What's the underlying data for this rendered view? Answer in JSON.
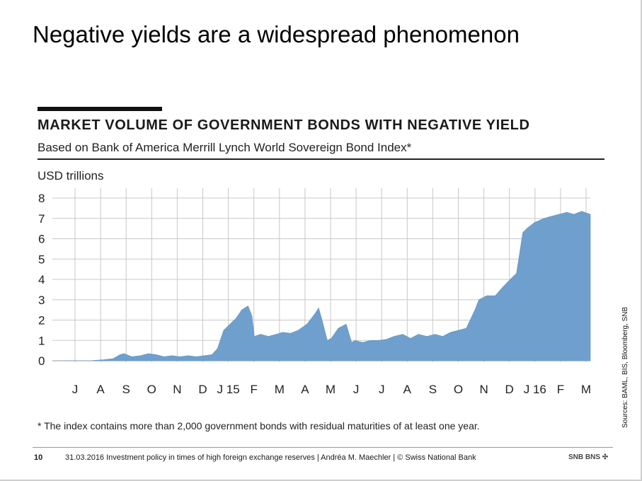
{
  "slide": {
    "title": "Negative yields are a widespread phenomenon",
    "footnote": "* The index contains more than 2,000 government bonds with residual maturities of at least one year.",
    "source": "Sources: BAML, BIS, Bloomberg, SNB"
  },
  "footer": {
    "page": "10",
    "text": "31.03.2016  Investment policy in times of high foreign exchange reserves  |  Andréa M. Maechler  |  © Swiss National Bank",
    "logo": "SNB BNS ✣"
  },
  "chart_data": {
    "type": "area",
    "title": "MARKET VOLUME OF GOVERNMENT BONDS WITH NEGATIVE YIELD",
    "subtitle": "Based on Bank of America Merrill Lynch World Sovereign Bond Index*",
    "ylabel": "USD trillions",
    "ylim": [
      0,
      8
    ],
    "yticks": [
      0,
      1,
      2,
      3,
      4,
      5,
      6,
      7,
      8
    ],
    "x_tick_labels": [
      "J",
      "A",
      "S",
      "O",
      "N",
      "D",
      "J 15",
      "F",
      "M",
      "A",
      "M",
      "J",
      "J",
      "A",
      "S",
      "O",
      "N",
      "D",
      "J 16",
      "F",
      "M"
    ],
    "x_range": [
      "2014-06-01",
      "2016-03-31"
    ],
    "grid": true,
    "color": "#6f9fcc",
    "series": [
      {
        "x": [
          "2014-06-01",
          "2014-07-01",
          "2014-07-20",
          "2014-08-01",
          "2014-08-10",
          "2014-08-15",
          "2014-08-25",
          "2014-09-05",
          "2014-09-15",
          "2014-09-25",
          "2014-10-05",
          "2014-10-15",
          "2014-10-25",
          "2014-11-05",
          "2014-11-15",
          "2014-11-25",
          "2014-12-05",
          "2014-12-12",
          "2014-12-20",
          "2014-12-28",
          "2015-01-05",
          "2015-01-12",
          "2015-01-20",
          "2015-01-25",
          "2015-01-28",
          "2015-02-05",
          "2015-02-15",
          "2015-02-25",
          "2015-03-05",
          "2015-03-15",
          "2015-03-25",
          "2015-04-05",
          "2015-04-15",
          "2015-04-20",
          "2015-04-25",
          "2015-05-01",
          "2015-05-06",
          "2015-05-15",
          "2015-05-25",
          "2015-06-01",
          "2015-06-05",
          "2015-06-15",
          "2015-06-25",
          "2015-07-05",
          "2015-07-15",
          "2015-07-25",
          "2015-08-05",
          "2015-08-15",
          "2015-08-25",
          "2015-09-05",
          "2015-09-15",
          "2015-09-25",
          "2015-10-05",
          "2015-10-15",
          "2015-10-25",
          "2015-11-05",
          "2015-11-10",
          "2015-11-20",
          "2015-12-01",
          "2015-12-10",
          "2015-12-20",
          "2015-12-28",
          "2016-01-05",
          "2016-01-10",
          "2016-01-20",
          "2016-02-01",
          "2016-02-10",
          "2016-02-20",
          "2016-03-01",
          "2016-03-10",
          "2016-03-20",
          "2016-03-31"
        ],
        "y": [
          0,
          0,
          0.05,
          0.1,
          0.3,
          0.35,
          0.2,
          0.25,
          0.35,
          0.3,
          0.2,
          0.25,
          0.2,
          0.25,
          0.2,
          0.25,
          0.3,
          0.6,
          1.5,
          1.8,
          2.1,
          2.5,
          2.7,
          2.2,
          1.2,
          1.3,
          1.2,
          1.3,
          1.4,
          1.35,
          1.5,
          1.8,
          2.3,
          2.6,
          1.9,
          1.0,
          1.1,
          1.6,
          1.8,
          0.9,
          1.0,
          0.9,
          1.0,
          1.0,
          1.05,
          1.2,
          1.3,
          1.1,
          1.3,
          1.2,
          1.3,
          1.2,
          1.4,
          1.5,
          1.6,
          2.5,
          3.0,
          3.2,
          3.2,
          3.6,
          4.0,
          4.3,
          6.3,
          6.5,
          6.8,
          7.0,
          7.1,
          7.2,
          7.3,
          7.2,
          7.35,
          7.2
        ]
      }
    ]
  }
}
